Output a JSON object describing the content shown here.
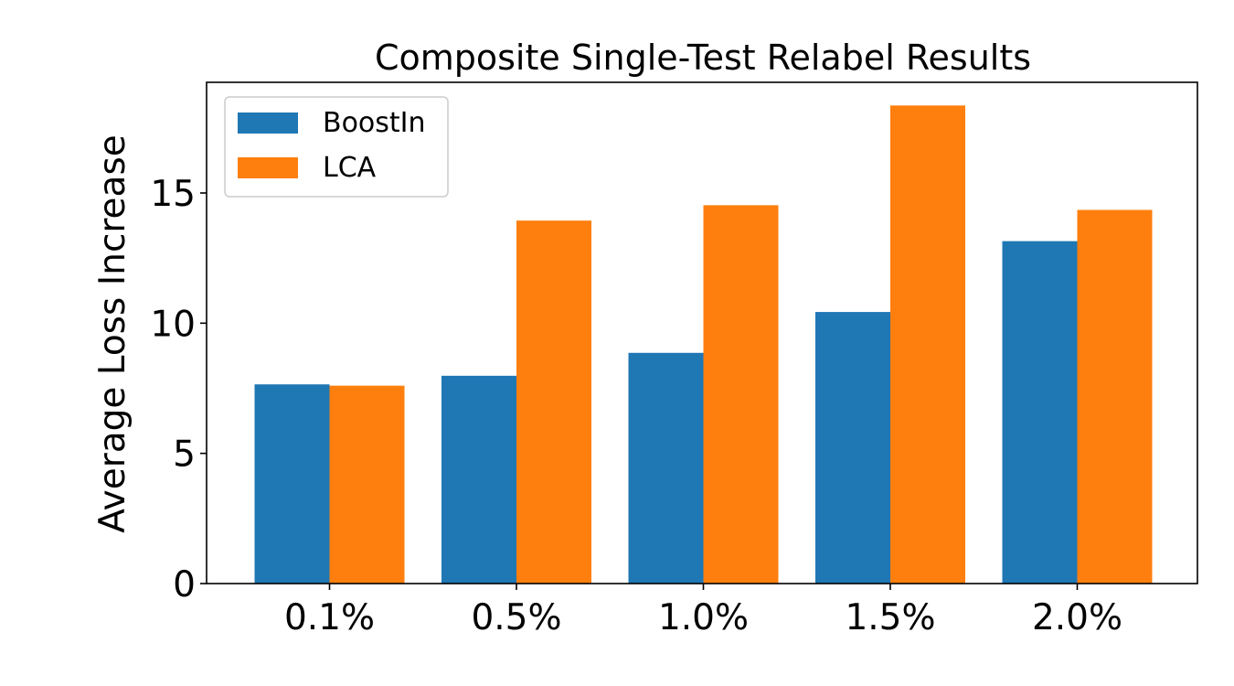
{
  "chart_data": {
    "type": "bar",
    "title": "Composite Single-Test Relabel Results",
    "xlabel": "",
    "ylabel": "Average Loss Increase",
    "categories": [
      "0.1%",
      "0.5%",
      "1.0%",
      "1.5%",
      "2.0%"
    ],
    "series": [
      {
        "name": "BoostIn",
        "color": "#1f77b4",
        "values": [
          7.65,
          7.98,
          8.86,
          10.43,
          13.15
        ]
      },
      {
        "name": "LCA",
        "color": "#ff7f0e",
        "values": [
          7.6,
          13.94,
          14.53,
          18.36,
          14.35
        ]
      }
    ],
    "ylim": [
      0,
      19.25
    ],
    "yticks": [
      0,
      5,
      10,
      15
    ],
    "grid": false,
    "legend_position": "top-left"
  }
}
